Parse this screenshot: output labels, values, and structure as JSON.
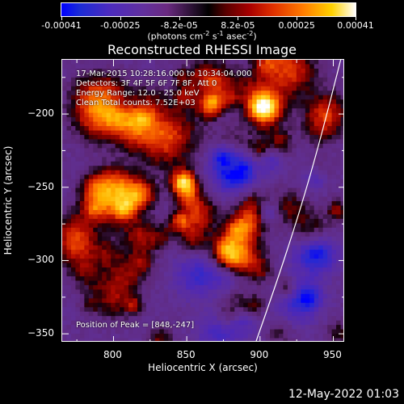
{
  "colorbar": {
    "ticks": [
      "-0.00041",
      "-0.00025",
      "-8.2e-05",
      "8.2e-05",
      "0.00025",
      "0.00041"
    ],
    "unit_main": "(photons cm",
    "unit_sup1": "-2",
    "unit_mid": " s",
    "unit_sup2": "-1",
    "unit_end": " asec",
    "unit_sup3": "-2",
    "unit_close": ")"
  },
  "chart_data": {
    "type": "heatmap",
    "title": "Reconstructed RHESSI Image",
    "xlabel": "Heliocentric X (arcsec)",
    "ylabel": "Heliocentric Y (arcsec)",
    "xlim": [
      765,
      958
    ],
    "ylim": [
      -356,
      -163
    ],
    "xticks": [
      800,
      850,
      900,
      950
    ],
    "yticks": [
      -200,
      -250,
      -300,
      -350
    ],
    "peak": [
      848,
      -247
    ],
    "annotations": [
      "17-Mar-2015 10:28:16.000 to 10:34:04.000",
      "Detectors: 3F 4F 5F 6F 7F 8F, Att 0",
      "Energy Range: 12.0 - 25.0 keV",
      "Clean  Total counts: 7.52E+03"
    ],
    "peak_label": "Position of Peak = [848,-247]",
    "limb_color": "#ffffff"
  },
  "footer": {
    "timestamp": "12-May-2022 01:03"
  }
}
